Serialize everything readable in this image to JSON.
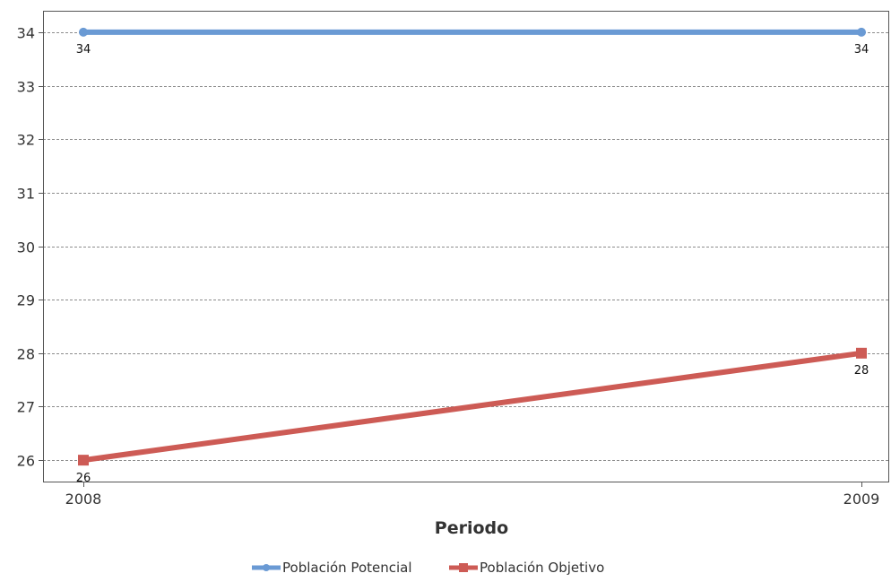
{
  "chart_data": {
    "type": "line",
    "title": "",
    "xlabel": "Periodo",
    "ylabel": "",
    "categories": [
      "2008",
      "2009"
    ],
    "ylim": [
      25.6,
      34.4
    ],
    "yticks": [
      26,
      27,
      28,
      29,
      30,
      31,
      32,
      33,
      34
    ],
    "grid": true,
    "legend_position": "bottom-center",
    "series": [
      {
        "name": "Población Potencial",
        "values": [
          34,
          34
        ],
        "color": "#6a9ad4",
        "marker": "circle",
        "data_labels": [
          "34",
          "34"
        ]
      },
      {
        "name": "Población Objetivo",
        "values": [
          26,
          28
        ],
        "color": "#cd5b55",
        "marker": "square",
        "data_labels": [
          "26",
          "28"
        ]
      }
    ]
  }
}
